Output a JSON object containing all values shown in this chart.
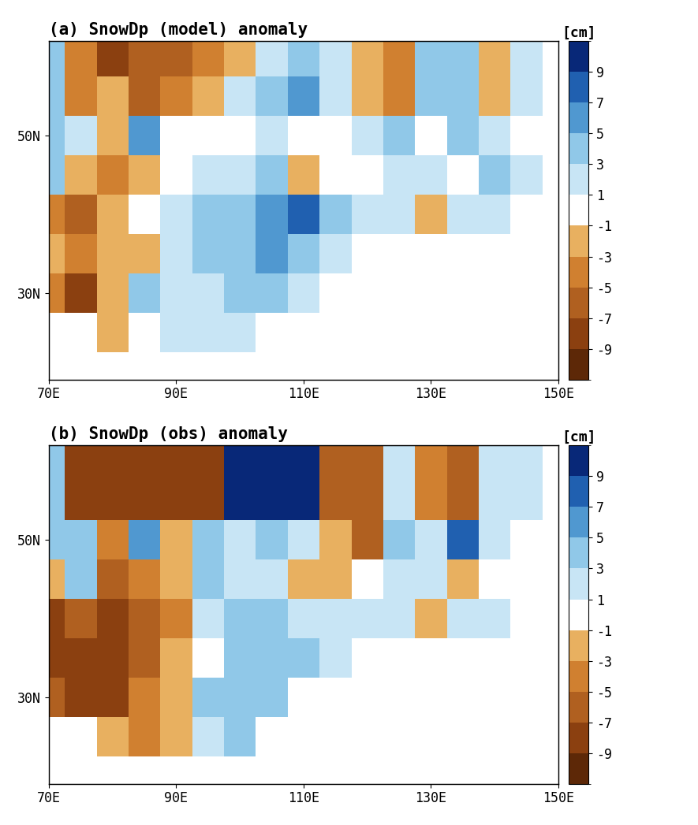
{
  "title_a": "(a) SnowDp (model) anomaly",
  "title_b": "(b) SnowDp (obs) anomaly",
  "colorbar_label": "[cm]",
  "lon_min": 70,
  "lon_max": 150,
  "lat_min": 20,
  "lat_max": 60,
  "xticks": [
    70,
    90,
    110,
    130,
    150
  ],
  "yticks": [
    30,
    50
  ],
  "grid_size": 5,
  "title_fontsize": 15,
  "tick_fontsize": 12,
  "colorbar_fontsize": 12,
  "figsize": [
    8.85,
    10.47
  ],
  "bounds": [
    -10,
    -9,
    -7,
    -5,
    -3,
    -1,
    1,
    3,
    5,
    7,
    9,
    10
  ],
  "cmap_colors": [
    "#5d2807",
    "#8b4010",
    "#b06020",
    "#d08030",
    "#e8b060",
    "#ffffff",
    "#c8e5f5",
    "#90c8e8",
    "#5098d0",
    "#2060b0",
    "#082878"
  ],
  "cb_ticks": [
    -9,
    -7,
    -5,
    -3,
    -1,
    1,
    3,
    5,
    7,
    9
  ],
  "data_a": [
    [
      null,
      null,
      null,
      null,
      null,
      null,
      null,
      null,
      null,
      null,
      null,
      null,
      null,
      null,
      null,
      null,
      null
    ],
    [
      null,
      null,
      -3,
      -1,
      1,
      1,
      1,
      null,
      null,
      null,
      null,
      null,
      null,
      null,
      null,
      null,
      null
    ],
    [
      -5,
      -9,
      -3,
      3,
      1,
      1,
      3,
      3,
      1,
      -1,
      null,
      null,
      null,
      null,
      null,
      null,
      null
    ],
    [
      -3,
      -5,
      -3,
      -3,
      1,
      3,
      3,
      5,
      3,
      1,
      -1,
      -1,
      null,
      null,
      null,
      null,
      null
    ],
    [
      -5,
      -7,
      -3,
      -1,
      1,
      3,
      3,
      5,
      7,
      3,
      1,
      1,
      -3,
      1,
      1,
      -1,
      null
    ],
    [
      3,
      -3,
      -5,
      -3,
      -1,
      1,
      1,
      3,
      -3,
      -1,
      -1,
      1,
      1,
      -1,
      3,
      1,
      null
    ],
    [
      3,
      1,
      -3,
      5,
      -1,
      -1,
      -1,
      1,
      -1,
      -1,
      1,
      3,
      -1,
      3,
      1,
      -1,
      null
    ],
    [
      3,
      -5,
      -3,
      -7,
      -5,
      -3,
      1,
      3,
      5,
      1,
      -3,
      -5,
      3,
      3,
      -3,
      1,
      null
    ],
    [
      3,
      -5,
      -9,
      -7,
      -7,
      -5,
      -3,
      1,
      3,
      1,
      -3,
      -5,
      3,
      3,
      -3,
      1,
      null
    ]
  ],
  "data_b": [
    [
      null,
      null,
      null,
      null,
      null,
      null,
      null,
      null,
      null,
      null,
      null,
      null,
      null,
      null,
      null,
      null,
      null
    ],
    [
      null,
      null,
      -3,
      -5,
      -3,
      1,
      3,
      null,
      null,
      null,
      null,
      null,
      null,
      null,
      null,
      null,
      null
    ],
    [
      -7,
      -9,
      -9,
      -5,
      -3,
      3,
      3,
      3,
      -1,
      -1,
      null,
      null,
      null,
      null,
      null,
      null,
      null
    ],
    [
      -9,
      -9,
      -9,
      -7,
      -3,
      -1,
      3,
      3,
      3,
      1,
      -1,
      -1,
      null,
      null,
      null,
      null,
      null
    ],
    [
      -9,
      -7,
      -9,
      -7,
      -5,
      1,
      3,
      3,
      1,
      1,
      1,
      1,
      -3,
      1,
      1,
      -1,
      null
    ],
    [
      -3,
      3,
      -7,
      -5,
      -3,
      3,
      1,
      1,
      -3,
      -3,
      -1,
      1,
      1,
      -3,
      -1,
      -1,
      null
    ],
    [
      3,
      3,
      -5,
      5,
      -3,
      3,
      1,
      3,
      1,
      -3,
      -7,
      3,
      1,
      7,
      1,
      -1,
      null
    ],
    [
      3,
      -9,
      -9,
      -9,
      -9,
      -9,
      9,
      9,
      9,
      -7,
      -7,
      1,
      -5,
      -7,
      1,
      1,
      null
    ],
    [
      3,
      -9,
      -9,
      -9,
      -9,
      -9,
      9,
      9,
      9,
      -7,
      -7,
      1,
      -5,
      -7,
      1,
      1,
      null
    ]
  ]
}
